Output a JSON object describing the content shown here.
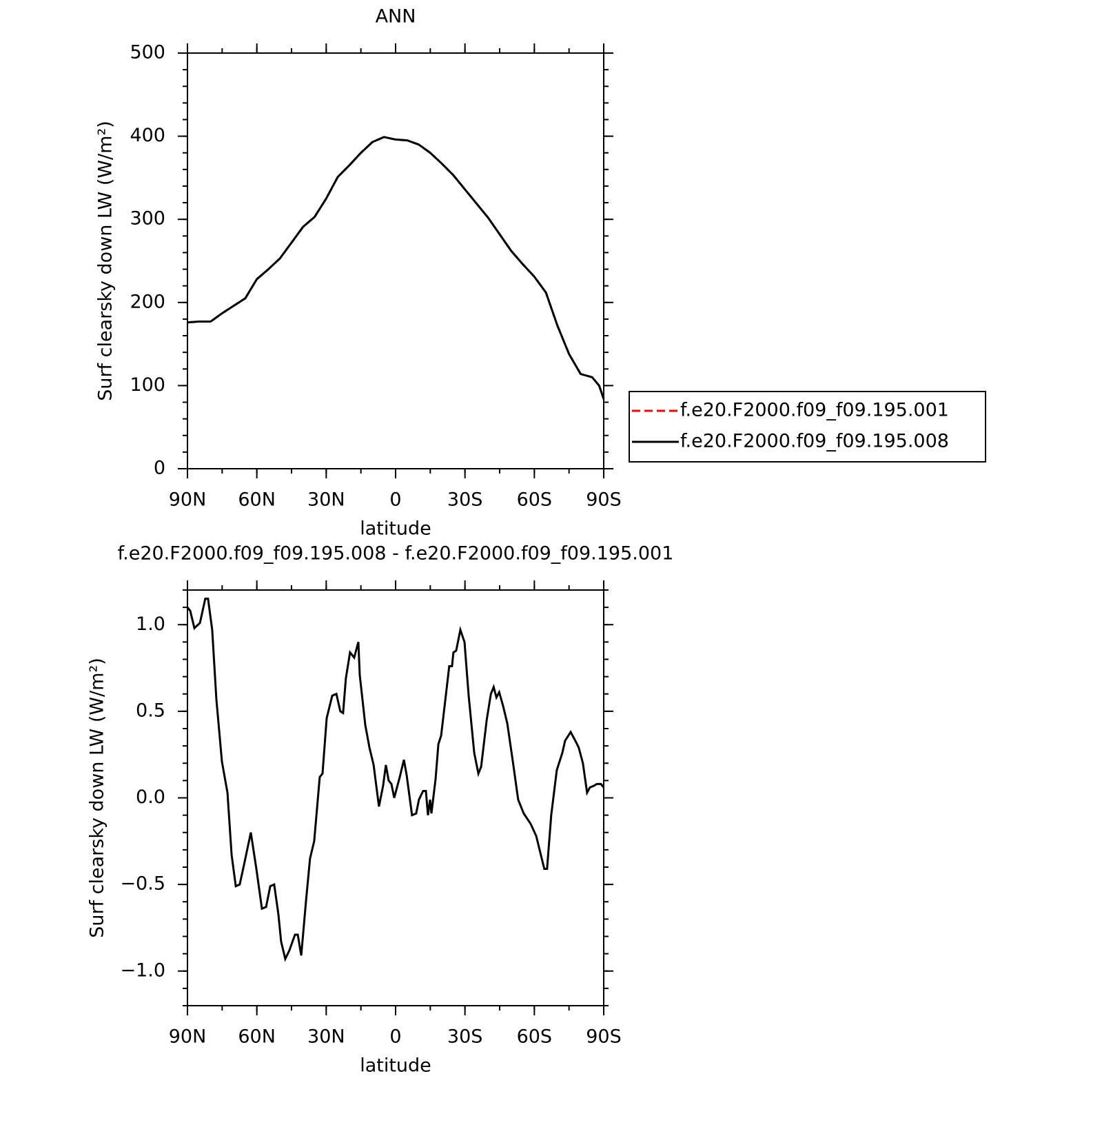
{
  "chart_data": [
    {
      "type": "line",
      "title": "ANN",
      "xlabel": "latitude",
      "ylabel": "Surf clearsky down LW (W/m²)",
      "x": [
        90,
        85,
        80,
        75,
        70,
        65,
        60,
        55,
        50,
        45,
        40,
        35,
        30,
        25,
        20,
        15,
        10,
        5,
        0,
        -5,
        -10,
        -15,
        -20,
        -25,
        -30,
        -35,
        -40,
        -45,
        -50,
        -55,
        -60,
        -65,
        -70,
        -75,
        -80,
        -85,
        -88,
        -90
      ],
      "series": [
        {
          "name": "f.e20.F2000.f09_f09.195.001",
          "color": "#ff0000",
          "dashed": true,
          "values": [
            176,
            177,
            177,
            187,
            196,
            205,
            228,
            240,
            253,
            272,
            291,
            303,
            325,
            351,
            365,
            380,
            393,
            399,
            396,
            395,
            390,
            380,
            367,
            353,
            336,
            319,
            302,
            282,
            262,
            246,
            231,
            212,
            172,
            138,
            114,
            110,
            100,
            84
          ]
        },
        {
          "name": "f.e20.F2000.f09_f09.195.008",
          "color": "#000000",
          "dashed": false,
          "values": [
            176,
            177,
            177,
            187,
            196,
            205,
            228,
            240,
            253,
            272,
            291,
            303,
            325,
            351,
            365,
            380,
            393,
            399,
            396,
            395,
            390,
            380,
            367,
            353,
            336,
            319,
            302,
            282,
            262,
            246,
            231,
            212,
            172,
            138,
            114,
            110,
            100,
            84
          ]
        }
      ],
      "xlim": [
        90,
        -90
      ],
      "xticks": [
        {
          "value": 90,
          "label": "90N"
        },
        {
          "value": 60,
          "label": "60N"
        },
        {
          "value": 30,
          "label": "30N"
        },
        0,
        {
          "value": -30,
          "label": "30S"
        },
        {
          "value": -60,
          "label": "60S"
        },
        {
          "value": -90,
          "label": "90S"
        }
      ],
      "ylim": [
        0,
        500
      ],
      "yticks": [
        0,
        100,
        200,
        300,
        400,
        500
      ],
      "legend": "right"
    },
    {
      "type": "line",
      "title": "f.e20.F2000.f09_f09.195.008 - f.e20.F2000.f09_f09.195.001",
      "xlabel": "latitude",
      "ylabel": "Surf clearsky down LW (W/m²)",
      "x": [
        90,
        88.8,
        87,
        84.6,
        82.3,
        81.1,
        79.3,
        77.5,
        75.1,
        72.7,
        70.9,
        69.1,
        67.4,
        65.6,
        62.6,
        60.2,
        57.8,
        56,
        54.2,
        52.5,
        50.7,
        49.5,
        47.7,
        45.9,
        43.5,
        42.3,
        40.8,
        38.7,
        37,
        35.2,
        32.8,
        31.6,
        29.8,
        27.4,
        25.6,
        23.9,
        22.7,
        21.5,
        19.7,
        17.9,
        16.1,
        15.5,
        13.1,
        11.3,
        9.5,
        7.2,
        5.4,
        4.2,
        3,
        1.8,
        0.6,
        -1.8,
        -3.6,
        -4.8,
        -7.1,
        -8.9,
        -10.1,
        -11.9,
        -13.1,
        -14,
        -14.9,
        -15.5,
        -17.3,
        -18.5,
        -19.7,
        -23.2,
        -24.4,
        -25,
        -26.2,
        -28,
        -29.8,
        -31.6,
        -34,
        -35.8,
        -37,
        -39.4,
        -41.2,
        -42.4,
        -43.6,
        -44.8,
        -46.5,
        -48.3,
        -50.7,
        -53,
        -55.4,
        -58.4,
        -60.8,
        -63.2,
        -64.3,
        -65.5,
        -67.3,
        -69.7,
        -72.1,
        -73.3,
        -75.7,
        -78.1,
        -79.2,
        -81,
        -82.8,
        -84,
        -85.8,
        -87,
        -88.8,
        -90
      ],
      "series": [
        {
          "color": "#000000",
          "dashed": false,
          "values": [
            1.1,
            1.08,
            0.98,
            1.01,
            1.15,
            1.15,
            0.97,
            0.57,
            0.21,
            0.03,
            -0.33,
            -0.51,
            -0.5,
            -0.39,
            -0.2,
            -0.41,
            -0.64,
            -0.63,
            -0.51,
            -0.5,
            -0.67,
            -0.83,
            -0.93,
            -0.88,
            -0.79,
            -0.79,
            -0.91,
            -0.59,
            -0.35,
            -0.25,
            0.12,
            0.14,
            0.46,
            0.59,
            0.6,
            0.5,
            0.49,
            0.69,
            0.84,
            0.81,
            0.9,
            0.71,
            0.42,
            0.29,
            0.19,
            -0.05,
            0.07,
            0.19,
            0.1,
            0.08,
            0.0,
            0.12,
            0.22,
            0.13,
            -0.1,
            -0.09,
            -0.01,
            0.04,
            0.04,
            -0.1,
            -0.01,
            -0.09,
            0.11,
            0.31,
            0.36,
            0.76,
            0.76,
            0.84,
            0.85,
            0.97,
            0.9,
            0.59,
            0.26,
            0.14,
            0.18,
            0.45,
            0.6,
            0.64,
            0.58,
            0.61,
            0.53,
            0.43,
            0.21,
            -0.01,
            -0.09,
            -0.15,
            -0.22,
            -0.35,
            -0.41,
            -0.41,
            -0.1,
            0.16,
            0.26,
            0.33,
            0.38,
            0.32,
            0.29,
            0.2,
            0.03,
            0.06,
            0.07,
            0.08,
            0.08,
            0.06
          ]
        }
      ],
      "xlim": [
        90,
        -90
      ],
      "xticks": [
        {
          "value": 90,
          "label": "90N"
        },
        {
          "value": 60,
          "label": "60N"
        },
        {
          "value": 30,
          "label": "30N"
        },
        0,
        {
          "value": -30,
          "label": "30S"
        },
        {
          "value": -60,
          "label": "60S"
        },
        {
          "value": -90,
          "label": "90S"
        }
      ],
      "ylim": [
        -1.2,
        1.2
      ],
      "yticks": [
        {
          "value": -1,
          "label": "−1.0"
        },
        {
          "value": -0.5,
          "label": "−0.5"
        },
        {
          "value": 0,
          "label": "0.0"
        },
        0.5,
        {
          "value": 1,
          "label": "1.0"
        }
      ]
    }
  ]
}
